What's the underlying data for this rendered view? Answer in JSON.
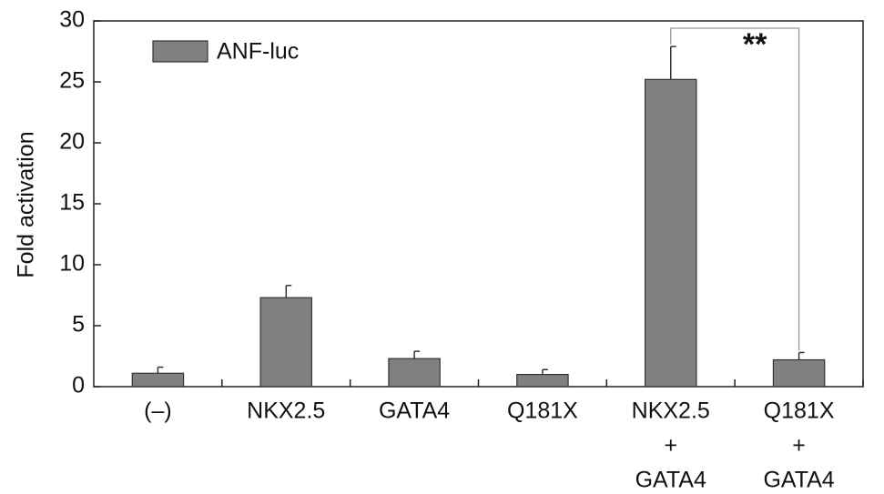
{
  "chart_data": {
    "type": "bar",
    "y_label": "Fold activation",
    "categories": [
      [
        "(–)"
      ],
      [
        "NKX2.5"
      ],
      [
        "GATA4"
      ],
      [
        "Q181X"
      ],
      [
        "NKX2.5",
        "+",
        "GATA4"
      ],
      [
        "Q181X",
        "+",
        "GATA4"
      ]
    ],
    "series": [
      {
        "name": "ANF-luc",
        "color": "#808080",
        "values": [
          1.1,
          7.3,
          2.3,
          1.0,
          25.2,
          2.2
        ],
        "errors": [
          0.5,
          1.0,
          0.6,
          0.4,
          2.7,
          0.6
        ]
      }
    ],
    "ylim": [
      0,
      30
    ],
    "yticks": [
      0,
      5,
      10,
      15,
      20,
      25,
      30
    ],
    "annotation": "**",
    "legend": "upper left"
  }
}
